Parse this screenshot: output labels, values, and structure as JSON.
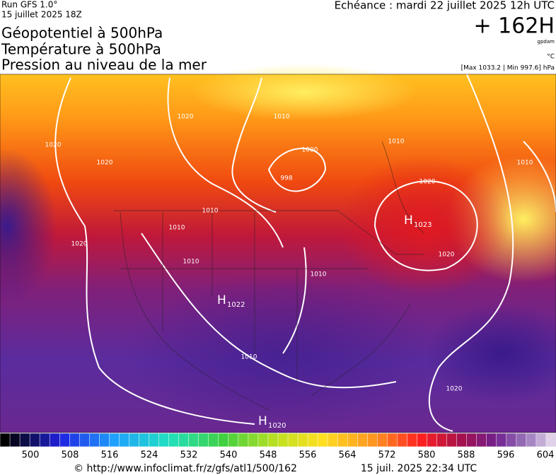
{
  "header": {
    "run": "Run GFS 1.0°",
    "run_date": "15 juillet 2025 18Z",
    "titles": [
      "Géopotentiel à 500hPa",
      "Température à 500hPa",
      "Pression au niveau de la mer"
    ],
    "valid_time": "Echéance : mardi 22 juillet 2025 12h UTC",
    "lead": "+ 162H",
    "unit_geo": "gpdam",
    "unit_temp": "°C",
    "pressure_range": "[Max 1033.2 | Min 997.6] hPa"
  },
  "map": {
    "isobar_labels": [
      1020,
      1010,
      1020,
      1020,
      1000,
      998,
      1010,
      1010,
      1010,
      1020,
      1010,
      1020,
      1010,
      1010,
      1020,
      1010,
      1020
    ],
    "centers": [
      {
        "letter": "H",
        "value": 1023
      },
      {
        "letter": "H",
        "value": 1022
      },
      {
        "letter": "H",
        "value": 1020
      }
    ]
  },
  "colorbar": {
    "ticks": [
      500,
      508,
      516,
      524,
      532,
      540,
      548,
      556,
      564,
      572,
      580,
      588,
      596,
      604
    ]
  },
  "footer": {
    "url": "© http://www.infoclimat.fr/z/gfs/atl1/500/162",
    "generated": "15 juil. 2025 22:34 UTC"
  }
}
